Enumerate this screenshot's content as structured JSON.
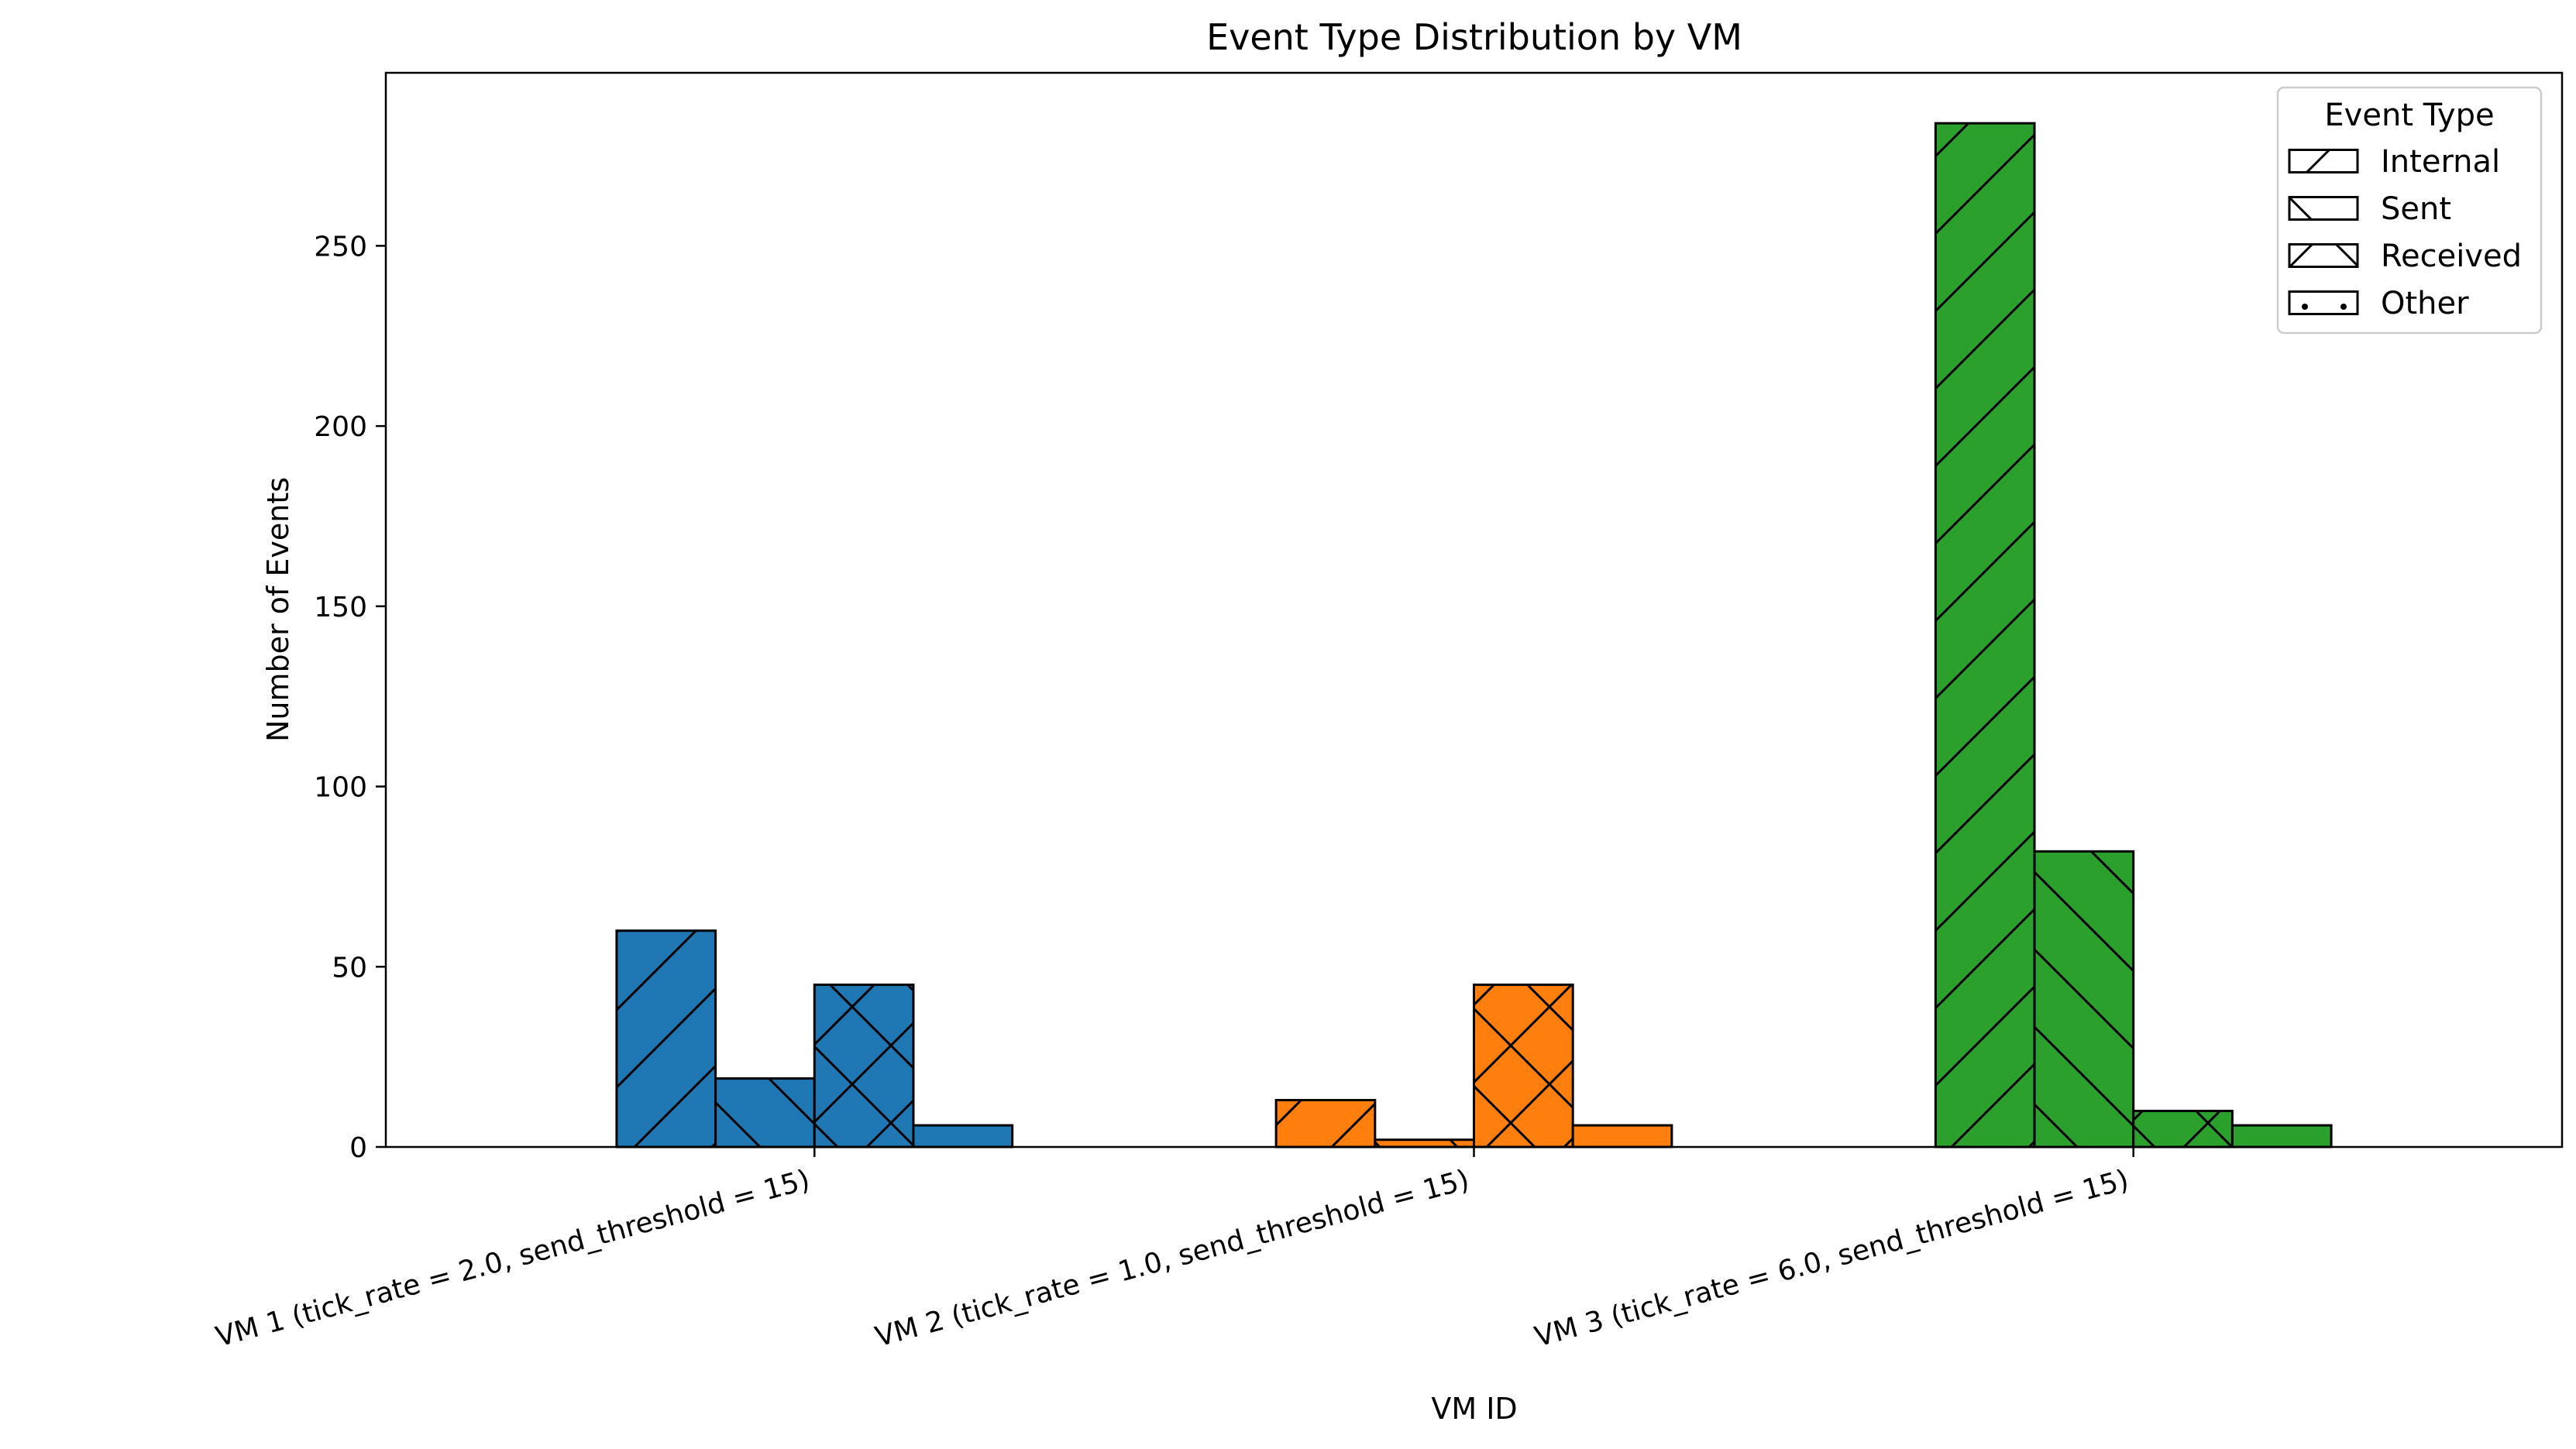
{
  "chart_data": {
    "type": "bar",
    "title": "Event Type Distribution by VM",
    "xlabel": "VM ID",
    "ylabel": "Number of Events",
    "categories": [
      "VM 1 (tick_rate = 2.0, send_threshold = 15)",
      "VM 2 (tick_rate = 1.0, send_threshold = 15)",
      "VM 3 (tick_rate = 6.0, send_threshold = 15)"
    ],
    "category_colors": [
      "#1f77b4",
      "#ff7f0e",
      "#2ca02c"
    ],
    "series": [
      {
        "name": "Internal",
        "hatch": "forward-diagonal",
        "values": [
          60,
          13,
          284
        ]
      },
      {
        "name": "Sent",
        "hatch": "back-diagonal",
        "values": [
          19,
          2,
          82
        ]
      },
      {
        "name": "Received",
        "hatch": "cross",
        "values": [
          45,
          45,
          10
        ]
      },
      {
        "name": "Other",
        "hatch": "dots",
        "values": [
          6,
          6,
          6
        ]
      }
    ],
    "ylim": [
      0,
      298
    ],
    "yticks": [
      0,
      50,
      100,
      150,
      200,
      250
    ],
    "grid": false,
    "legend": {
      "title": "Event Type",
      "placement": "top-right"
    }
  }
}
